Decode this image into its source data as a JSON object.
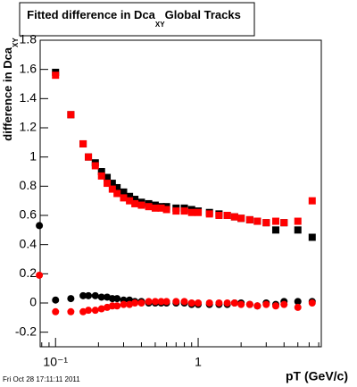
{
  "chart_data": {
    "type": "scatter",
    "title": "Fitted difference in Dca",
    "title_subscript": "XY",
    "title_suffix": "Global Tracks",
    "y_label": "difference in Dca",
    "y_label_subscript": "XY",
    "x_label": "pT (GeV/c)",
    "footer": "Fri Oct 28 17:11:11 2011",
    "log_x": true,
    "xlim": [
      0.078,
      7.3
    ],
    "ylim": [
      -0.3,
      1.8
    ],
    "xticks": [
      {
        "value": 0.1,
        "label": "10⁻¹"
      },
      1
    ],
    "xminorticks": [
      0.08,
      0.09,
      0.2,
      0.3,
      0.4,
      0.5,
      0.6,
      0.7,
      0.8,
      0.9,
      2,
      3,
      4,
      5,
      6,
      7
    ],
    "yticks": [
      -0.2,
      0,
      0.2,
      0.4,
      0.6,
      0.8,
      1,
      1.2,
      1.4,
      1.6,
      1.8
    ],
    "x": [
      0.077,
      0.1,
      0.128,
      0.156,
      0.17,
      0.19,
      0.21,
      0.23,
      0.25,
      0.27,
      0.3,
      0.33,
      0.36,
      0.4,
      0.45,
      0.5,
      0.55,
      0.6,
      0.7,
      0.8,
      0.9,
      1.0,
      1.2,
      1.4,
      1.6,
      1.8,
      2.0,
      2.3,
      2.6,
      3.0,
      3.5,
      4.0,
      5.0,
      6.3
    ],
    "series": [
      {
        "color": "#000000",
        "marker": "square",
        "values": [
          null,
          1.58,
          1.29,
          1.09,
          1.0,
          0.96,
          0.9,
          0.86,
          0.82,
          0.79,
          0.76,
          0.73,
          0.71,
          0.69,
          0.68,
          0.67,
          0.66,
          0.66,
          0.65,
          0.65,
          0.64,
          0.63,
          0.62,
          0.61,
          0.6,
          0.59,
          0.58,
          0.57,
          0.56,
          0.55,
          0.5,
          0.55,
          0.5,
          0.45
        ]
      },
      {
        "color": "#ff0000",
        "marker": "square",
        "values": [
          null,
          1.56,
          1.29,
          1.09,
          1.0,
          0.94,
          0.87,
          0.82,
          0.78,
          0.75,
          0.72,
          0.7,
          0.68,
          0.67,
          0.66,
          0.65,
          0.65,
          0.64,
          0.63,
          0.63,
          0.62,
          0.62,
          0.61,
          0.6,
          0.6,
          0.59,
          0.58,
          0.57,
          0.56,
          0.55,
          0.56,
          0.55,
          0.56,
          0.7
        ]
      },
      {
        "color": "#000000",
        "marker": "circle",
        "values": [
          0.53,
          0.02,
          0.03,
          0.05,
          0.05,
          0.05,
          0.04,
          0.04,
          0.03,
          0.03,
          0.02,
          0.02,
          0.01,
          0.01,
          0.0,
          0.0,
          0.0,
          0.0,
          0.0,
          0.0,
          -0.01,
          -0.01,
          -0.01,
          -0.01,
          -0.01,
          0.0,
          0.0,
          -0.01,
          -0.02,
          0.0,
          -0.01,
          0.01,
          0.01,
          0.01
        ]
      },
      {
        "color": "#ff0000",
        "marker": "circle",
        "values": [
          0.19,
          -0.06,
          -0.06,
          -0.06,
          -0.05,
          -0.05,
          -0.04,
          -0.03,
          -0.02,
          -0.02,
          -0.01,
          -0.01,
          0.0,
          0.0,
          0.01,
          0.01,
          0.01,
          0.01,
          0.01,
          0.01,
          0.0,
          0.0,
          0.0,
          0.0,
          0.0,
          0.0,
          -0.01,
          -0.01,
          -0.02,
          -0.01,
          -0.02,
          -0.01,
          -0.03,
          0.0
        ]
      }
    ]
  }
}
